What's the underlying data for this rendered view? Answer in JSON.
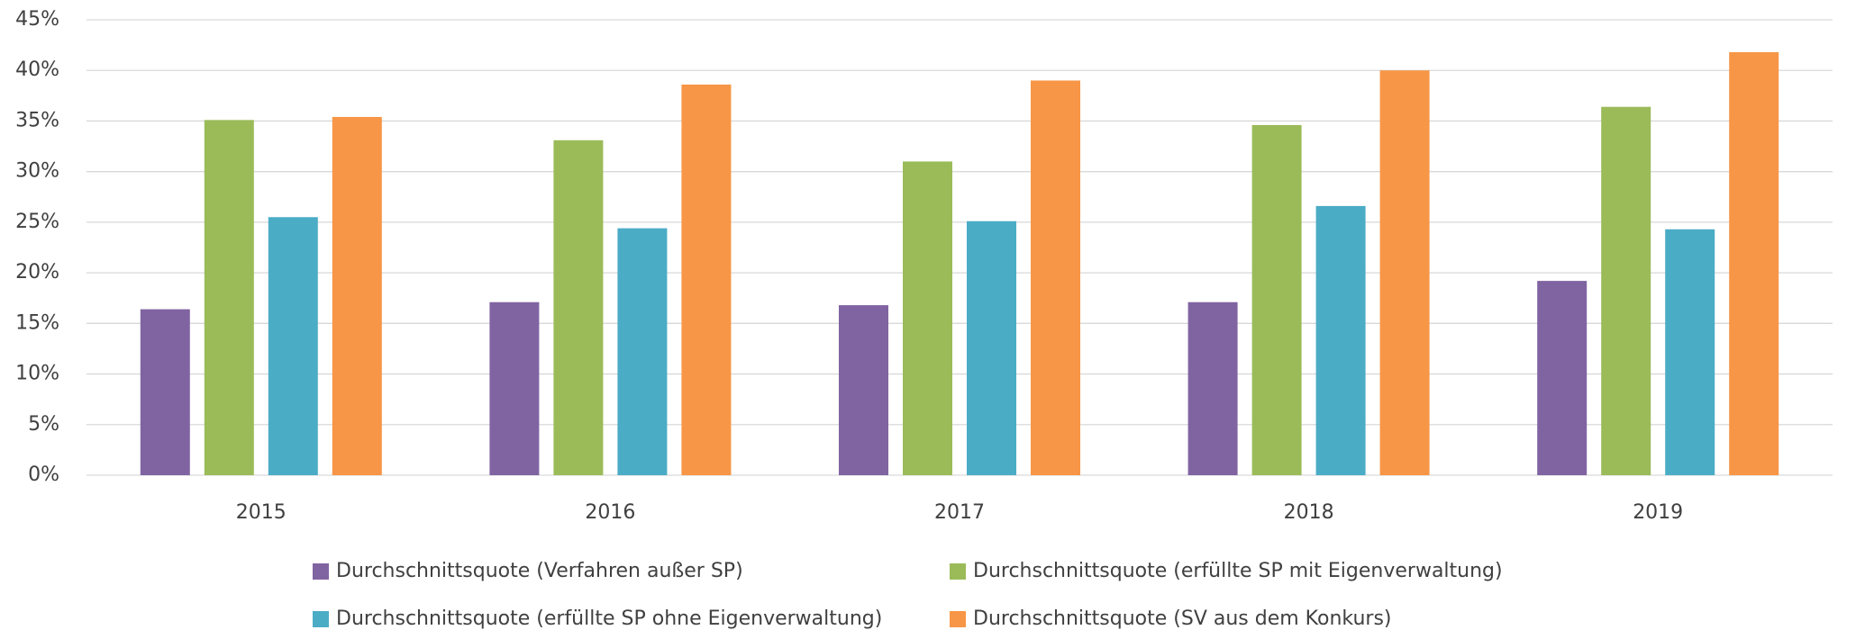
{
  "chart_data": {
    "type": "bar",
    "categories": [
      "2015",
      "2016",
      "2017",
      "2018",
      "2019"
    ],
    "series": [
      {
        "name": "Durchschnittsquote (Verfahren außer SP)",
        "color": "#8064a2",
        "values": [
          16.4,
          17.1,
          16.8,
          17.1,
          19.2
        ]
      },
      {
        "name": "Durchschnittsquote (erfüllte SP mit Eigenverwaltung)",
        "color": "#9bbb59",
        "values": [
          35.1,
          33.1,
          31.0,
          34.6,
          36.4
        ]
      },
      {
        "name": "Durchschnittsquote (erfüllte SP ohne Eigenverwaltung)",
        "color": "#4bacc6",
        "values": [
          25.5,
          24.4,
          25.1,
          26.6,
          24.3
        ]
      },
      {
        "name": "Durchschnittsquote (SV aus dem Konkurs)",
        "color": "#f79646",
        "values": [
          35.4,
          38.6,
          39.0,
          40.0,
          41.8
        ]
      }
    ],
    "ylim": [
      0,
      45
    ],
    "yticks": [
      {
        "value": 0,
        "label": "0%"
      },
      {
        "value": 5,
        "label": "5%"
      },
      {
        "value": 10,
        "label": "10%"
      },
      {
        "value": 15,
        "label": "15%"
      },
      {
        "value": 20,
        "label": "20%"
      },
      {
        "value": 25,
        "label": "25%"
      },
      {
        "value": 30,
        "label": "30%"
      },
      {
        "value": 35,
        "label": "35%"
      },
      {
        "value": 40,
        "label": "40%"
      },
      {
        "value": 45,
        "label": "45%"
      }
    ],
    "grid": true
  }
}
